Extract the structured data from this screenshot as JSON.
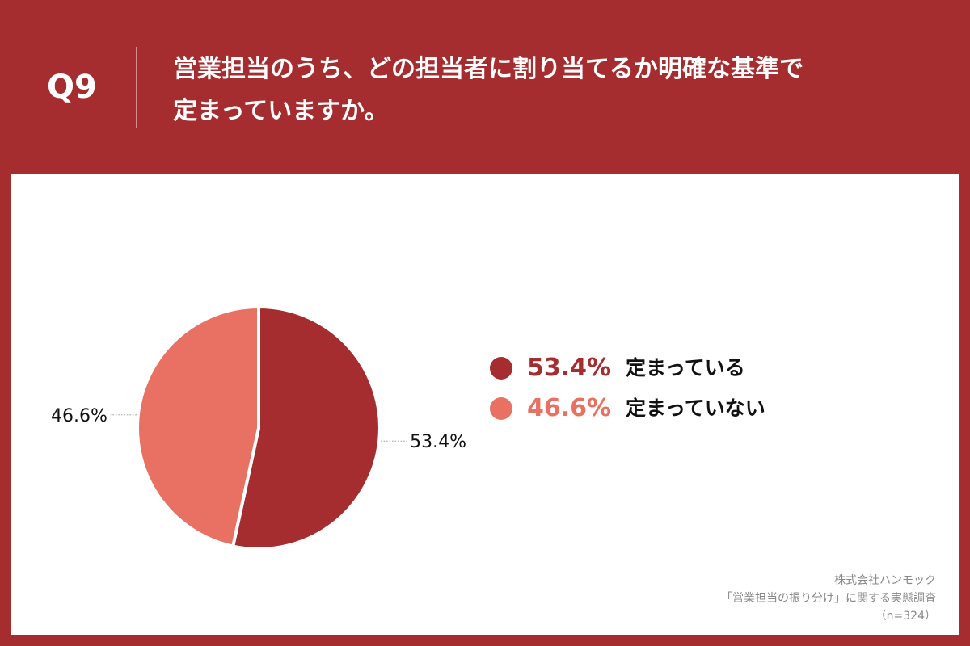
{
  "header": {
    "qnum": "Q9",
    "question_line1": "営業担当のうち、どの担当者に割り当てるか明確な基準で",
    "question_line2": "定まっていますか。"
  },
  "chart_data": {
    "type": "pie",
    "categories": [
      "定まっている",
      "定まっていない"
    ],
    "values": [
      53.4,
      46.6
    ],
    "value_labels": [
      "53.4%",
      "46.6%"
    ],
    "colors": [
      "#a52d30",
      "#e97163"
    ]
  },
  "legend": [
    {
      "pct": "53.4%",
      "label": "定まっている"
    },
    {
      "pct": "46.6%",
      "label": "定まっていない"
    }
  ],
  "source": {
    "line1": "株式会社ハンモック",
    "line2": "「営業担当の振り分け」に関する実態調査",
    "line3": "（n=324）"
  },
  "colors": {
    "background": "#a52d30",
    "panel": "#ffffff"
  }
}
